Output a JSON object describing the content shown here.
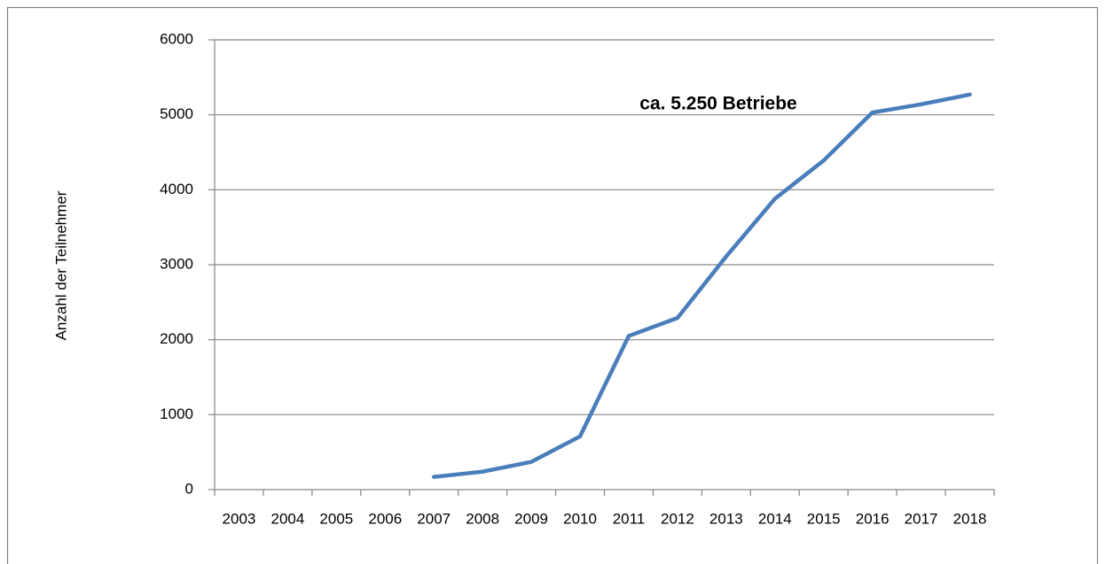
{
  "chart_data": {
    "type": "line",
    "y_label": "Anzahl der Teilnehmer",
    "annotation": "ca. 5.250 Betriebe",
    "categories": [
      "2003",
      "2004",
      "2005",
      "2006",
      "2007",
      "2008",
      "2009",
      "2010",
      "2011",
      "2012",
      "2013",
      "2014",
      "2015",
      "2016",
      "2017",
      "2018"
    ],
    "series": [
      {
        "name": "Teilnehmer",
        "color": "#4a7ebb",
        "values": [
          null,
          null,
          null,
          null,
          170,
          240,
          370,
          710,
          2050,
          2290,
          3110,
          3880,
          4390,
          5030,
          5140,
          5270
        ]
      }
    ],
    "ylim": [
      0,
      6000
    ],
    "yticks": [
      0,
      1000,
      2000,
      3000,
      4000,
      5000,
      6000
    ],
    "grid": true
  }
}
